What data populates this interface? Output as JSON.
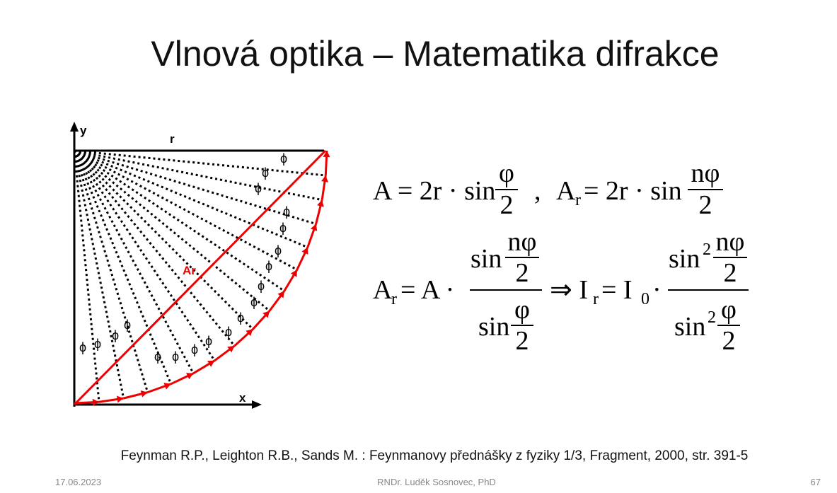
{
  "header": {
    "title": "Vlnová optika – Matematika difrakce"
  },
  "diagram": {
    "y_axis": "y",
    "x_axis": "x",
    "radius": "r",
    "chord": "Ar",
    "angle": "ϕ"
  },
  "formulas": {
    "eq1": {
      "a": "A = 2r · sin",
      "frac1_num": "φ",
      "frac1_den": "2",
      "sep": ",",
      "b": "A",
      "b_sub": "r",
      "c": "= 2r · sin",
      "frac2_num": "nφ",
      "frac2_den": "2"
    },
    "eq2": {
      "a": "A",
      "a_sub": "r",
      "b": "= A ·",
      "num_sin": "sin",
      "num_frac_num": "nφ",
      "num_frac_den": "2",
      "den_sin": "sin",
      "den_frac_num": "φ",
      "den_frac_den": "2",
      "arrow": "⇒ I",
      "i_sub": "r",
      "eq": "= I",
      "i0_sub": "0",
      "dot": "·",
      "rnum_sin": "sin",
      "rnum_sup": "2",
      "rnum_frac_num": "nφ",
      "rnum_frac_den": "2",
      "rden_sin": "sin",
      "rden_sup": "2",
      "rden_frac_num": "φ",
      "rden_frac_den": "2"
    }
  },
  "reference": "Feynman R.P., Leighton R.B., Sands M. : Feynmanovy přednášky z fyziky 1/3, Fragment, 2000, str. 391-5",
  "footer": {
    "date": "17.06.2023",
    "author": "RNDr. Luděk Sosnovec, PhD",
    "page": "67"
  }
}
